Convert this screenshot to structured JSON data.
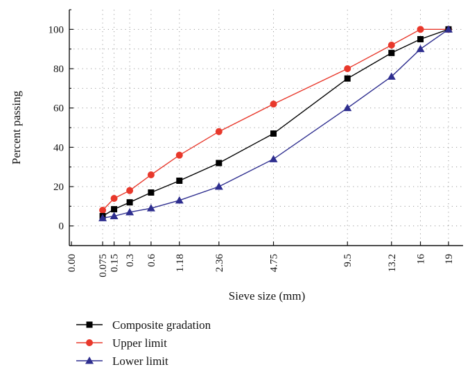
{
  "chart_data": {
    "type": "line",
    "title": "",
    "xlabel": "Sieve size (mm)",
    "ylabel": "Percent passing",
    "x_scale": "power-0.45",
    "xlim": [
      0,
      19
    ],
    "ylim": [
      -10,
      110
    ],
    "grid": true,
    "legend_position": "bottom-left",
    "x_tick_labels": [
      "0.00",
      "0.075",
      "0.15",
      "0.3",
      "0.6",
      "1.18",
      "2.36",
      "4.75",
      "9.5",
      "13.2",
      "16",
      "19"
    ],
    "x": [
      0.075,
      0.15,
      0.3,
      0.6,
      1.18,
      2.36,
      4.75,
      9.5,
      13.2,
      16,
      19
    ],
    "y_ticks": [
      0,
      20,
      40,
      60,
      80,
      100
    ],
    "series": [
      {
        "name": "Composite gradation",
        "color": "#000000",
        "marker": "square",
        "values": [
          5,
          8.5,
          12,
          17,
          23,
          32,
          47,
          75,
          88,
          95,
          100
        ]
      },
      {
        "name": "Upper limit",
        "color": "#e8382b",
        "marker": "circle",
        "values": [
          8,
          14,
          18,
          26,
          36,
          48,
          62,
          80,
          92,
          100,
          100
        ]
      },
      {
        "name": "Lower limit",
        "color": "#2e2e8f",
        "marker": "triangle",
        "values": [
          4,
          5,
          7,
          9,
          13,
          20,
          34,
          60,
          76,
          90,
          100
        ]
      }
    ]
  }
}
